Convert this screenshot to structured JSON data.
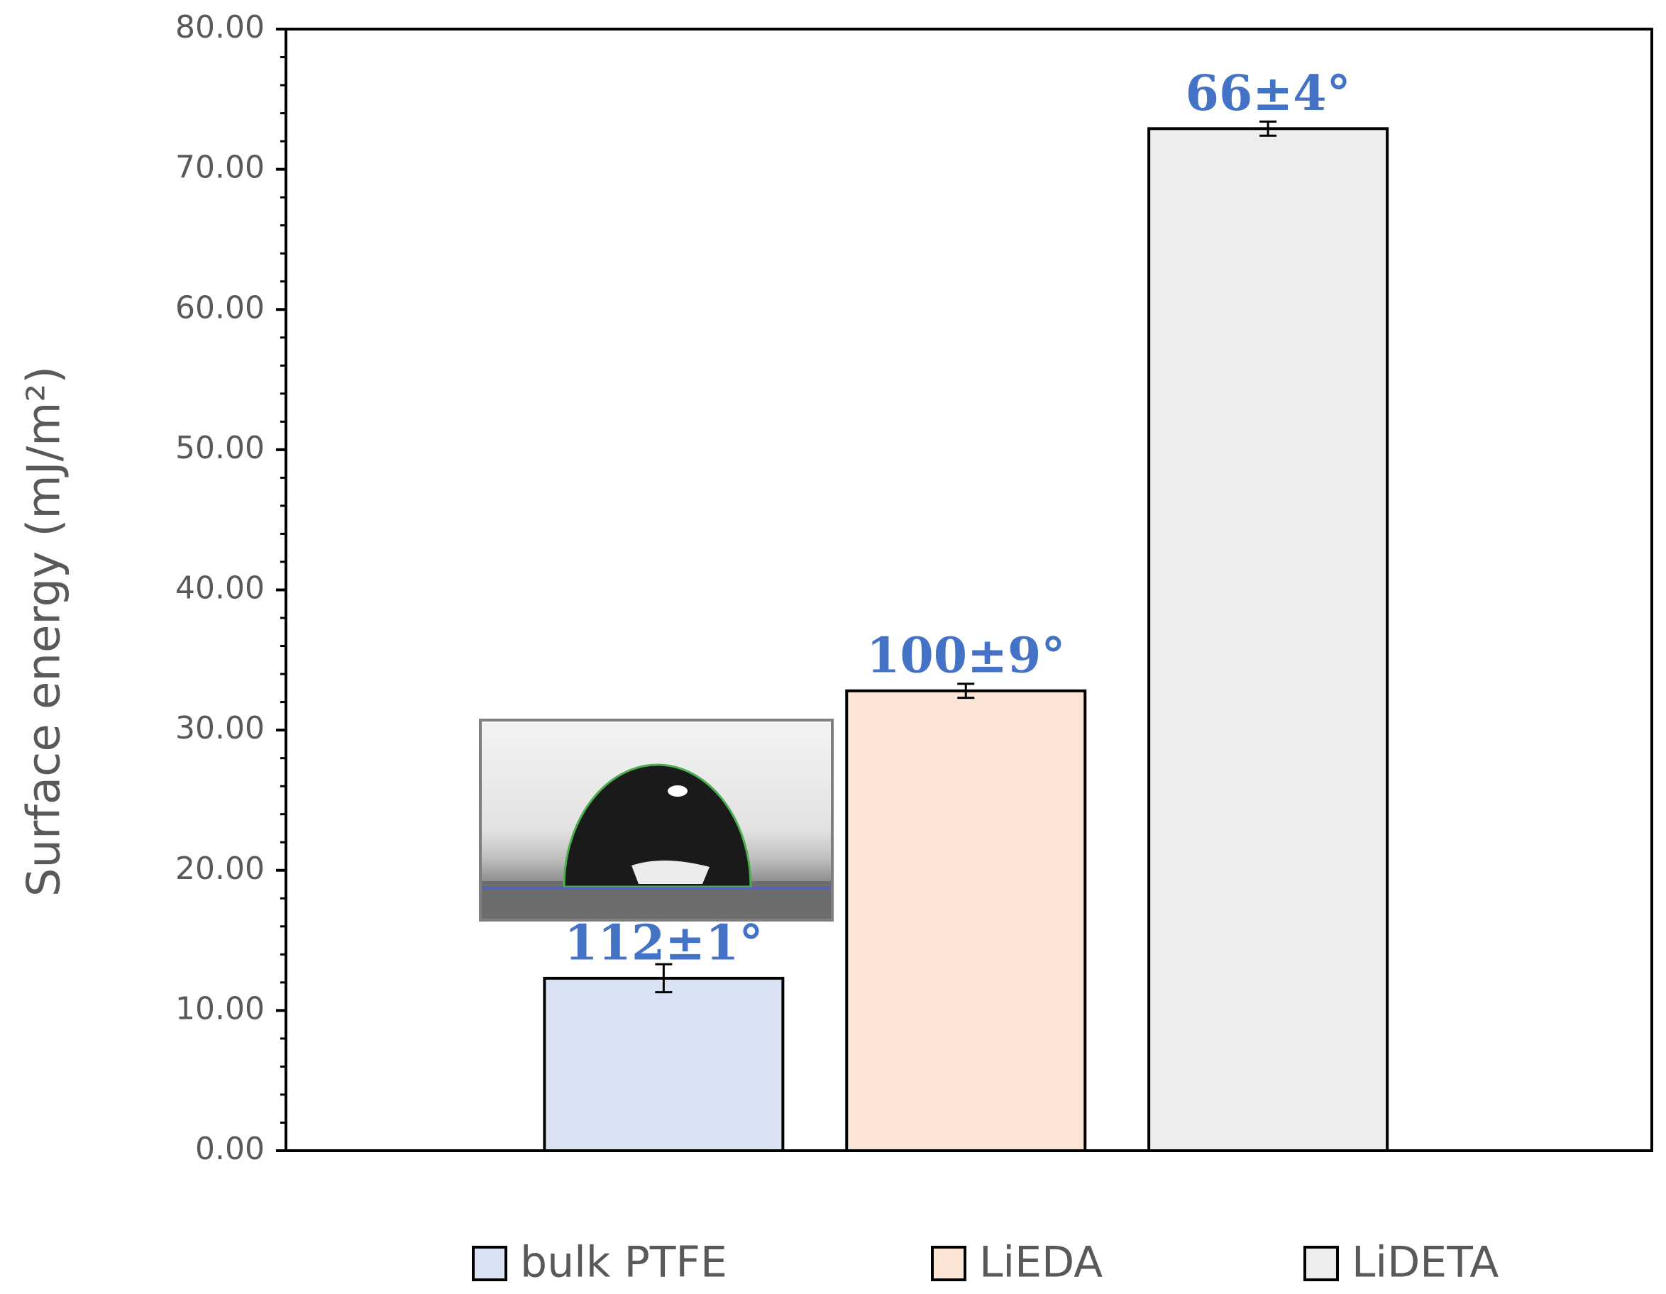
{
  "chart_data": {
    "type": "bar",
    "y_label": "Surface energy (mJ/m²)",
    "ylim": [
      0,
      80
    ],
    "yticks": [
      {
        "value": 0,
        "label": "0.00"
      },
      {
        "value": 10,
        "label": "10.00"
      },
      {
        "value": 20,
        "label": "20.00"
      },
      {
        "value": 30,
        "label": "30.00"
      },
      {
        "value": 40,
        "label": "40.00"
      },
      {
        "value": 50,
        "label": "50.00"
      },
      {
        "value": 60,
        "label": "60.00"
      },
      {
        "value": 70,
        "label": "70.00"
      },
      {
        "value": 80,
        "label": "80.00"
      }
    ],
    "yminorticks": [
      2,
      4,
      6,
      8,
      12,
      14,
      16,
      18,
      22,
      24,
      26,
      28,
      32,
      34,
      36,
      38,
      42,
      44,
      46,
      48,
      52,
      54,
      56,
      58,
      62,
      64,
      66,
      68,
      72,
      74,
      76,
      78
    ],
    "legend": "bottom",
    "series": [
      {
        "name": "bulk PTFE",
        "color": "#dae3f3",
        "values": [
          12.3
        ],
        "errors": [
          1.0
        ],
        "annotation": "112±1°"
      },
      {
        "name": "LiEDA",
        "color": "#fbe5d6",
        "values": [
          32.8
        ],
        "errors": [
          0.5
        ],
        "annotation": "100±9°"
      },
      {
        "name": "LiDETA",
        "color": "#ededed",
        "values": [
          72.9
        ],
        "errors": [
          0.5
        ],
        "annotation": "66±4°"
      }
    ]
  }
}
